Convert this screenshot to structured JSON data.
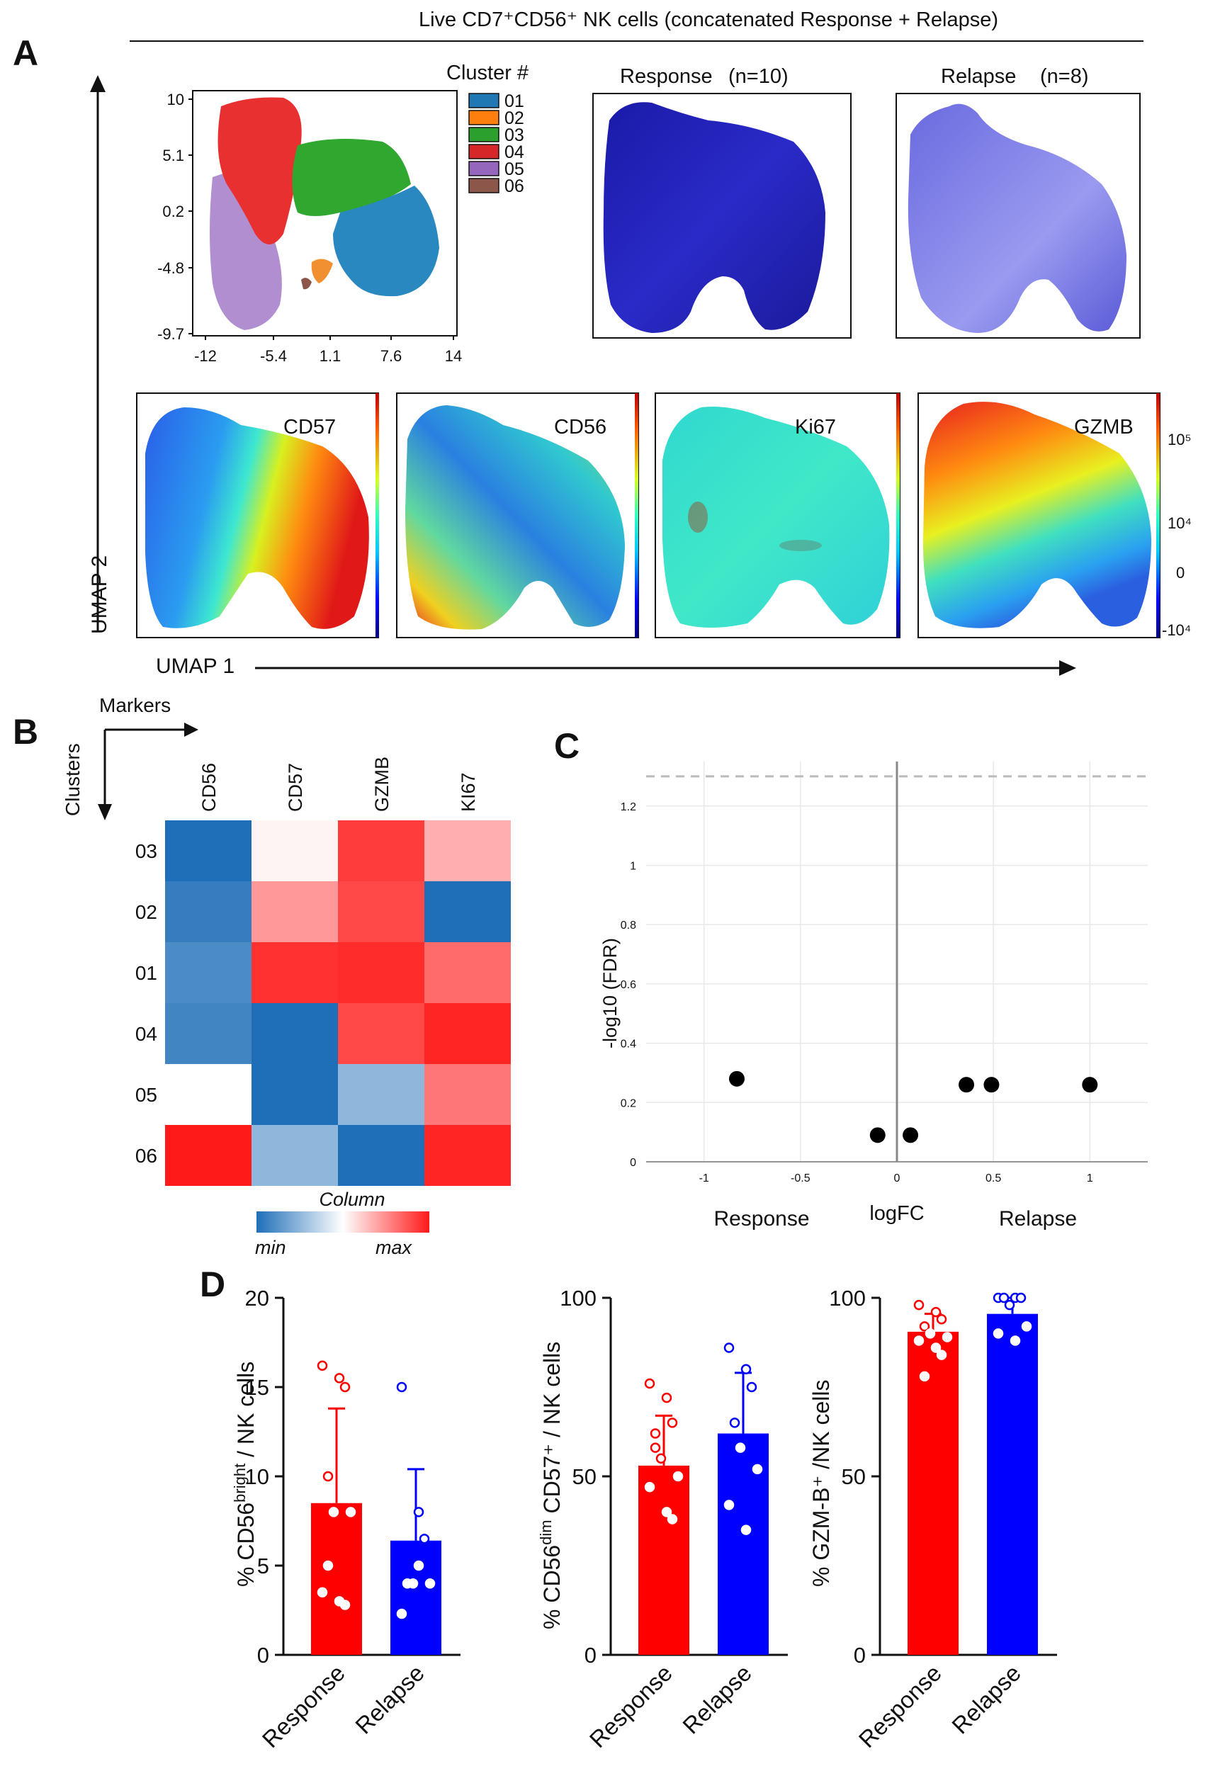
{
  "header": {
    "title": "Live CD7⁺CD56⁺ NK cells (concatenated Response + Relapse)"
  },
  "panels": {
    "A": "A",
    "B": "B",
    "C": "C",
    "D": "D"
  },
  "panel_a": {
    "cluster_legend_title": "Cluster #",
    "clusters": [
      {
        "id": "01",
        "color": "#1f77b4"
      },
      {
        "id": "02",
        "color": "#ff7f0e"
      },
      {
        "id": "03",
        "color": "#2ca02c"
      },
      {
        "id": "04",
        "color": "#d62728"
      },
      {
        "id": "05",
        "color": "#9467bd"
      },
      {
        "id": "06",
        "color": "#8c564b"
      }
    ],
    "cluster_plot": {
      "x_ticks": [
        "-12",
        "-5.4",
        "1.1",
        "7.6",
        "14"
      ],
      "y_ticks": [
        "10",
        "5.1",
        "0.2",
        "-4.8",
        "-9.7"
      ]
    },
    "response_title": "Response",
    "response_n": "(n=10)",
    "relapse_title": "Relapse",
    "relapse_n": "(n=8)",
    "markers": [
      "CD57",
      "CD56",
      "Ki67",
      "GZMB"
    ],
    "scale_ticks": [
      "10⁵",
      "10⁴",
      "0",
      "-10⁴"
    ],
    "x_axis_label": "UMAP 1",
    "y_axis_label": "UMAP 2"
  },
  "panel_b": {
    "markers_label": "Markers",
    "clusters_label": "Clusters",
    "columns": [
      "CD56",
      "CD57",
      "GZMB",
      "KI67"
    ],
    "rows": [
      "03",
      "02",
      "01",
      "04",
      "05",
      "06"
    ],
    "legend_title": "Column",
    "legend_min": "min",
    "legend_max": "max"
  },
  "colors": {
    "response": "#ff0000",
    "relapse": "#0000ff",
    "relapse_text": "#1f3a7a",
    "heat_min": "#1f6fb8",
    "heat_max": "#ff1a1a"
  },
  "chart_data": [
    {
      "type": "heatmap",
      "title": "",
      "columns": [
        "CD56",
        "CD57",
        "GZMB",
        "KI67"
      ],
      "rows": [
        "03",
        "02",
        "01",
        "04",
        "05",
        "06"
      ],
      "values": [
        [
          -1.0,
          0.05,
          0.85,
          0.35
        ],
        [
          -0.9,
          0.45,
          0.8,
          -1.0
        ],
        [
          -0.8,
          0.9,
          0.92,
          0.65
        ],
        [
          -0.85,
          -1.0,
          0.8,
          0.95
        ],
        [
          0.0,
          -1.0,
          -0.5,
          0.6
        ],
        [
          1.0,
          -0.5,
          -1.0,
          0.95
        ]
      ],
      "legend": "Column (min → max)"
    },
    {
      "type": "scatter",
      "title": "",
      "xlabel": "logFC",
      "ylabel": "-log10 (FDR)",
      "xlim": [
        -1.3,
        1.3
      ],
      "ylim": [
        0,
        1.35
      ],
      "x_ticks": [
        "-1",
        "-0.5",
        "0",
        "0.5",
        "1"
      ],
      "y_ticks": [
        "0",
        "0.2",
        "0.4",
        "0.6",
        "0.8",
        "1",
        "1.2"
      ],
      "threshold_y": 1.3,
      "grid": true,
      "left_label": "Response",
      "right_label": "Relapse",
      "points": [
        {
          "x": -0.83,
          "y": 0.28
        },
        {
          "x": -0.1,
          "y": 0.09
        },
        {
          "x": 0.07,
          "y": 0.09
        },
        {
          "x": 0.36,
          "y": 0.26
        },
        {
          "x": 0.49,
          "y": 0.26
        },
        {
          "x": 1.0,
          "y": 0.26
        }
      ]
    },
    {
      "type": "bar",
      "title": "",
      "ylabel_main": "% CD56",
      "ylabel_sup": "bright",
      "ylabel_rest": " / NK cells",
      "categories": [
        "Response",
        "Relapse"
      ],
      "values": [
        8.5,
        6.4
      ],
      "errors": [
        5.3,
        4.0
      ],
      "ylim": [
        0,
        20
      ],
      "y_ticks": [
        0,
        5,
        10,
        15,
        20
      ],
      "points": [
        [
          16.2,
          15.5,
          15.0,
          10.0,
          8.0,
          8.0,
          3.5,
          3.0,
          2.8,
          5.0
        ],
        [
          15.0,
          8.0,
          6.5,
          4.0,
          4.0,
          4.0,
          2.3,
          5.0
        ]
      ]
    },
    {
      "type": "bar",
      "title": "",
      "ylabel_main": "% CD56",
      "ylabel_sup": "dim",
      "ylabel_rest": " CD57⁺ / NK cells",
      "categories": [
        "Response",
        "Relapse"
      ],
      "values": [
        53,
        62
      ],
      "errors": [
        14,
        17
      ],
      "ylim": [
        0,
        100
      ],
      "y_ticks": [
        0,
        50,
        100
      ],
      "points": [
        [
          76,
          72,
          65,
          58,
          55,
          50,
          47,
          40,
          38,
          62
        ],
        [
          86,
          80,
          75,
          65,
          58,
          52,
          42,
          35
        ]
      ]
    },
    {
      "type": "bar",
      "title": "",
      "ylabel_main": "% GZM-B",
      "ylabel_sup": "",
      "ylabel_rest": "⁺ /NK cells",
      "categories": [
        "Response",
        "Relapse"
      ],
      "values": [
        90.5,
        95.5
      ],
      "errors": [
        5,
        4.5
      ],
      "ylim": [
        0,
        100
      ],
      "y_ticks": [
        0,
        50,
        100
      ],
      "points": [
        [
          98,
          96,
          94,
          92,
          90,
          89,
          88,
          86,
          84,
          78
        ],
        [
          100,
          100,
          100,
          100,
          98,
          92,
          90,
          88
        ]
      ]
    }
  ]
}
